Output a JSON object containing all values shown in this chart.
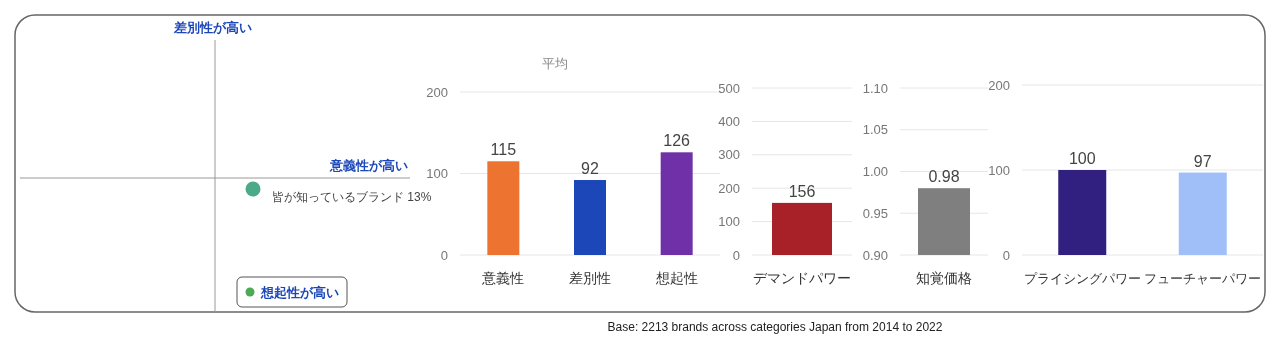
{
  "chart_data": [
    {
      "type": "other",
      "annotations": [
        "差別性が高い",
        "意義性が高い",
        "皆が知っているブランド 13%",
        "想起性が高い",
        "Base: 2213 brands across categories Japan from 2014 to 2022"
      ]
    },
    {
      "type": "bar",
      "title": "平均",
      "categories": [
        "意義性",
        "差別性",
        "想起性"
      ],
      "values": [
        115,
        92,
        126
      ],
      "colors": [
        "#ed7430",
        "#1c47b8",
        "#7030a8"
      ],
      "ylim": [
        0,
        200
      ],
      "yticks": [
        0,
        100,
        200
      ],
      "grid": "y",
      "data_labels": true
    },
    {
      "type": "bar",
      "categories": [
        "デマンドパワー"
      ],
      "values": [
        156
      ],
      "colors": [
        "#a82028"
      ],
      "ylim": [
        0,
        500
      ],
      "yticks": [
        0,
        100,
        200,
        300,
        400,
        500
      ],
      "grid": "y",
      "data_labels": true
    },
    {
      "type": "bar",
      "categories": [
        "知覚価格"
      ],
      "values": [
        0.98
      ],
      "colors": [
        "#7f7f7f"
      ],
      "ylim": [
        0.9,
        1.1
      ],
      "yticks": [
        {
          "value": 0.9,
          "label": "0.90"
        },
        {
          "value": 0.95,
          "label": "0.95"
        },
        {
          "value": 1.0,
          "label": "1.00"
        },
        {
          "value": 1.05,
          "label": "1.05"
        },
        {
          "value": 1.1,
          "label": "1.10"
        }
      ],
      "grid": "y",
      "data_labels": true
    },
    {
      "type": "bar",
      "categories": [
        "プライシングパワー",
        "フューチャーパワー"
      ],
      "values": [
        100,
        97
      ],
      "colors": [
        "#312080",
        "#a0bff8"
      ],
      "ylim": [
        0,
        200
      ],
      "yticks": [
        0,
        100,
        200
      ],
      "grid": "y",
      "data_labels": true
    }
  ]
}
